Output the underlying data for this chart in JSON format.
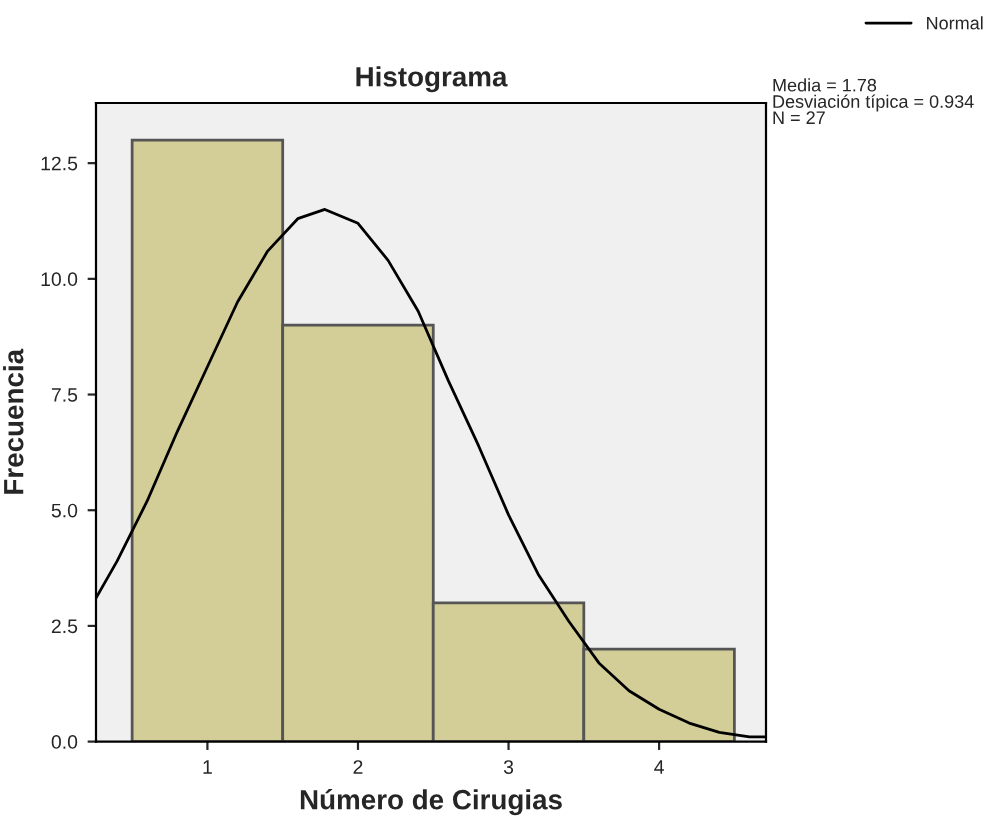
{
  "chart_data": {
    "type": "histogram",
    "title": "Histograma",
    "xlabel": "Número de Cirugias",
    "ylabel": "Frecuencia",
    "bins": [
      0.5,
      1.5,
      2.5,
      3.5,
      4.5
    ],
    "values": [
      13,
      9,
      3,
      2
    ],
    "color": "#d3ce97",
    "series": [
      {
        "name": "Normal",
        "type": "line",
        "color": "#000000",
        "x": [
          0.26,
          0.4,
          0.6,
          0.8,
          1.0,
          1.2,
          1.4,
          1.6,
          1.78,
          2.0,
          2.2,
          2.4,
          2.6,
          2.8,
          3.0,
          3.2,
          3.4,
          3.6,
          3.8,
          4.0,
          4.2,
          4.4,
          4.6,
          4.71
        ],
        "values": [
          3.1,
          3.9,
          5.2,
          6.7,
          8.1,
          9.5,
          10.6,
          11.3,
          11.5,
          11.2,
          10.4,
          9.3,
          7.8,
          6.4,
          4.9,
          3.6,
          2.6,
          1.7,
          1.1,
          0.7,
          0.4,
          0.2,
          0.1,
          0.1
        ]
      }
    ],
    "xlim": [
      0.26,
      4.71
    ],
    "xticks": [
      1,
      2,
      3,
      4
    ],
    "ylim": [
      0,
      13.8
    ],
    "yticks": [
      {
        "value": 0,
        "label": "0.0"
      },
      2.5,
      {
        "value": 5,
        "label": "5.0"
      },
      7.5,
      {
        "value": 10,
        "label": "10.0"
      },
      12.5
    ],
    "annotations": [
      "Media = 1.78\nDesviación típica = 0.934\nN = 27"
    ],
    "legend": "top right",
    "grid": false
  }
}
